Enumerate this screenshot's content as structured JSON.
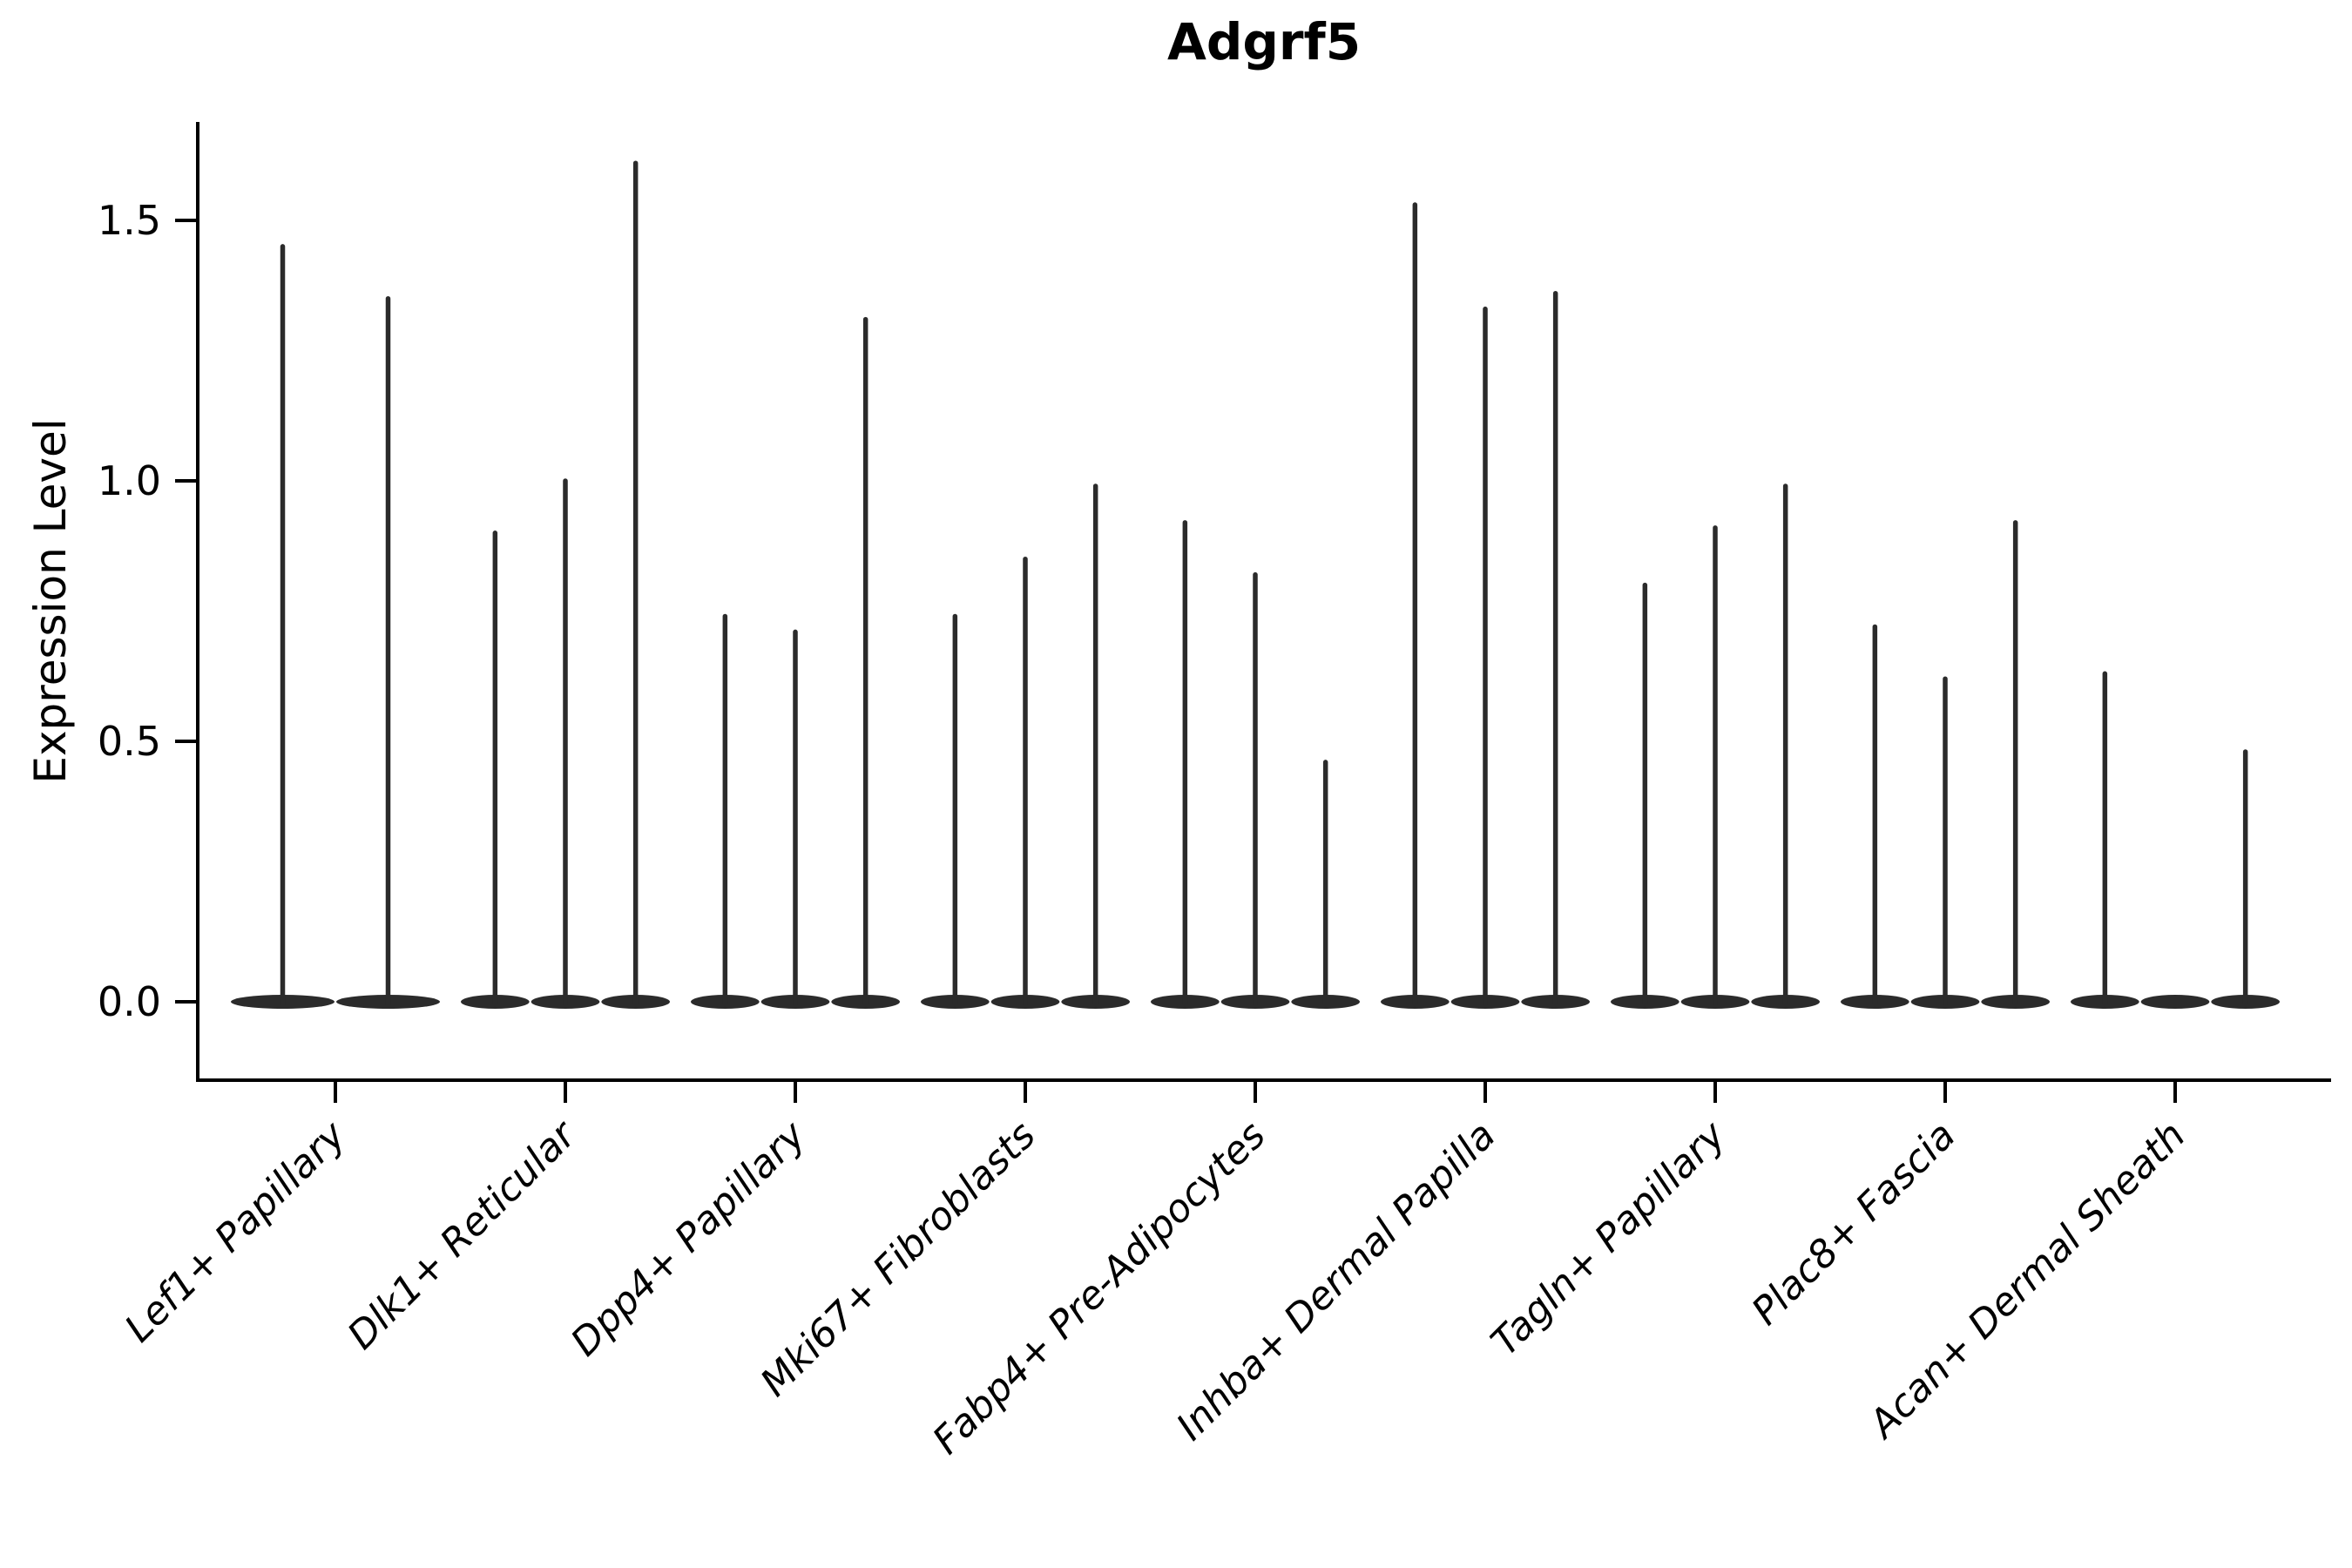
{
  "chart_data": {
    "type": "violin",
    "title": "Adgrf5",
    "ylabel": "Expression Level",
    "xlabel": "",
    "grid": false,
    "legend": null,
    "axis_color": "#000000",
    "violin_color": "#2b2b2b",
    "ylim": [
      -0.05,
      1.69
    ],
    "yticks": [
      {
        "label": "0.0",
        "value": 0.0
      },
      {
        "label": "0.5",
        "value": 0.5
      },
      {
        "label": "1.0",
        "value": 1.0
      },
      {
        "label": "1.5",
        "value": 1.5
      }
    ],
    "groups": [
      {
        "label": "Lef1+ Papillary",
        "violin_max_values": [
          1.45,
          1.35
        ]
      },
      {
        "label": "Dlk1+ Reticular",
        "violin_max_values": [
          0.9,
          1.0,
          1.61
        ]
      },
      {
        "label": "Dpp4+ Papillary",
        "violin_max_values": [
          0.74,
          0.71,
          1.31
        ]
      },
      {
        "label": "Mki67+ Fibroblasts",
        "violin_max_values": [
          0.74,
          0.85,
          0.99
        ]
      },
      {
        "label": "Fabp4+ Pre-Adipocytes",
        "violin_max_values": [
          0.92,
          0.82,
          0.46
        ]
      },
      {
        "label": "Inhba+ Dermal Papilla",
        "violin_max_values": [
          1.53,
          1.33,
          1.36
        ]
      },
      {
        "label": "Tagln+ Papillary",
        "violin_max_values": [
          0.8,
          0.91,
          0.99
        ]
      },
      {
        "label": "Plac8+ Fascia",
        "violin_max_values": [
          0.72,
          0.62,
          0.92
        ]
      },
      {
        "label": "Acan+ Dermal Sheath",
        "violin_max_values": [
          0.63,
          0.0,
          0.48
        ]
      }
    ]
  }
}
